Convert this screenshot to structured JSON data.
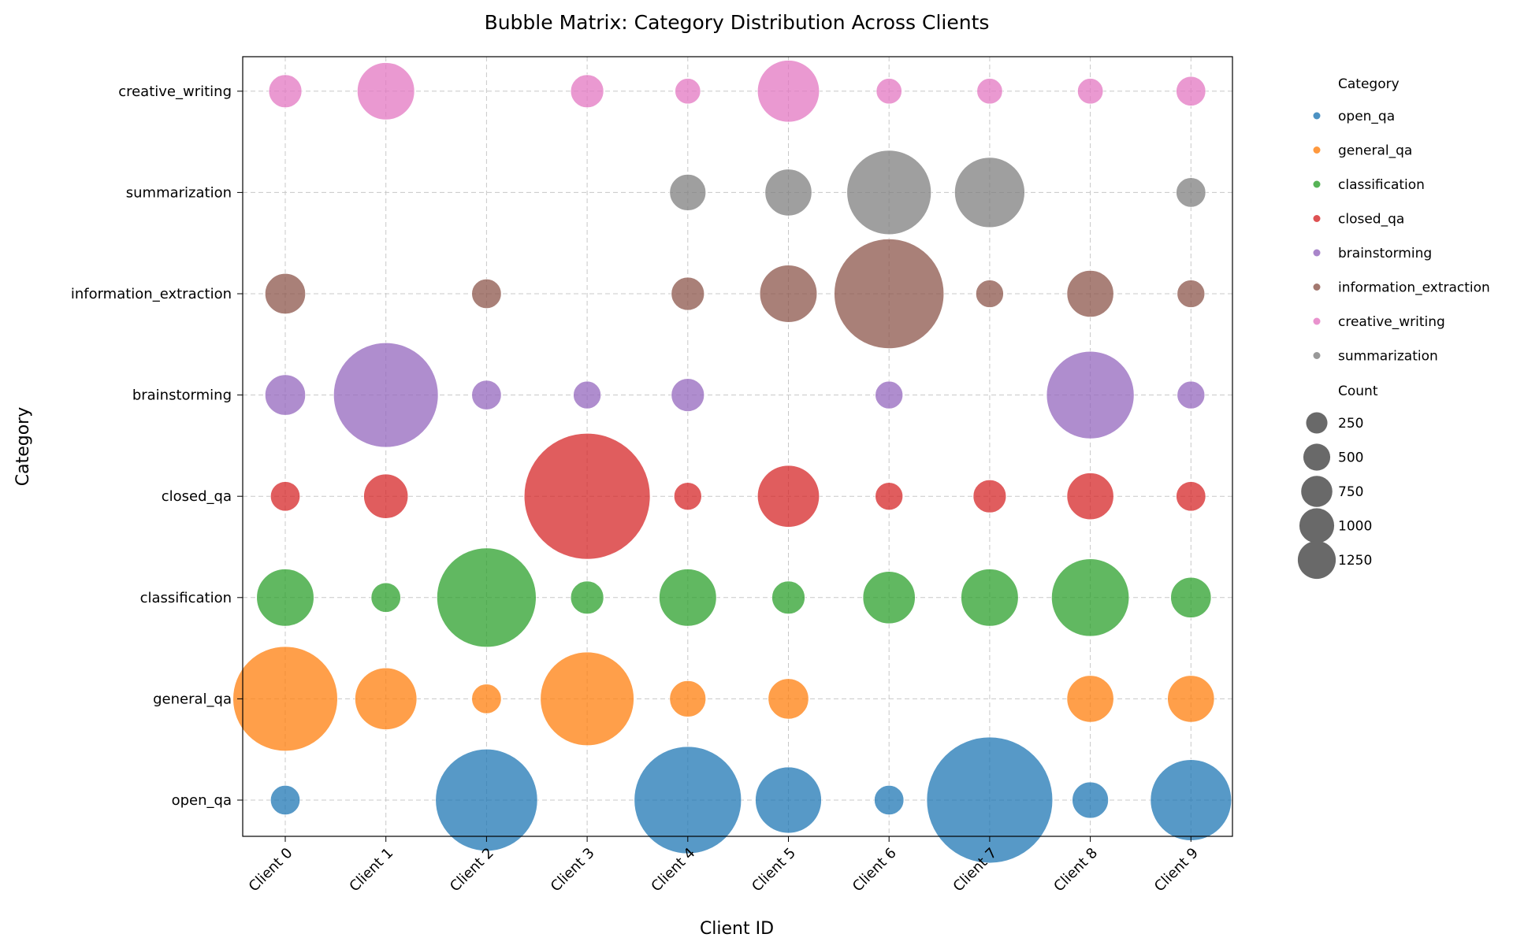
{
  "chart_data": {
    "type": "scatter",
    "subtype": "bubble-matrix",
    "title": "Bubble Matrix: Category Distribution Across Clients",
    "xlabel": "Client ID",
    "ylabel": "Category",
    "grid": true,
    "legend_placement": "right-outside",
    "x_categories": [
      "Client 0",
      "Client 1",
      "Client 2",
      "Client 3",
      "Client 4",
      "Client 5",
      "Client 6",
      "Client 7",
      "Client 8",
      "Client 9"
    ],
    "y_categories": [
      "open_qa",
      "general_qa",
      "classification",
      "closed_qa",
      "brainstorming",
      "information_extraction",
      "creative_writing",
      "summarization"
    ],
    "y_axis_order": [
      "open_qa",
      "general_qa",
      "classification",
      "closed_qa",
      "brainstorming",
      "information_extraction",
      "summarization",
      "creative_writing"
    ],
    "series": [
      {
        "name": "open_qa",
        "color": "#1f77b4",
        "values": [
          80,
          null,
          950,
          null,
          1050,
          400,
          80,
          1450,
          120,
          600
        ]
      },
      {
        "name": "general_qa",
        "color": "#ff7f0e",
        "values": [
          1000,
          350,
          80,
          800,
          120,
          150,
          null,
          null,
          200,
          200
        ]
      },
      {
        "name": "classification",
        "color": "#2ca02c",
        "values": [
          300,
          80,
          900,
          100,
          300,
          100,
          250,
          300,
          550,
          150
        ]
      },
      {
        "name": "closed_qa",
        "color": "#d62728",
        "values": [
          80,
          180,
          null,
          1450,
          70,
          350,
          70,
          100,
          200,
          80
        ]
      },
      {
        "name": "brainstorming",
        "color": "#9467bd",
        "values": [
          150,
          1000,
          80,
          70,
          100,
          null,
          70,
          null,
          700,
          70
        ]
      },
      {
        "name": "information_extraction",
        "color": "#8c564b",
        "values": [
          150,
          null,
          80,
          null,
          100,
          300,
          1100,
          70,
          200,
          70
        ]
      },
      {
        "name": "creative_writing",
        "color": "#e377c2",
        "values": [
          100,
          300,
          null,
          100,
          60,
          350,
          60,
          60,
          60,
          80
        ]
      },
      {
        "name": "summarization",
        "color": "#7f7f7f",
        "values": [
          null,
          null,
          null,
          null,
          120,
          200,
          650,
          450,
          null,
          80
        ]
      }
    ],
    "size_legend": {
      "title": "Count",
      "values": [
        250,
        500,
        750,
        1000,
        1250
      ],
      "labels": [
        "250",
        "500",
        "750",
        "1000",
        "1250"
      ],
      "color": "#696969"
    },
    "color_legend_title": "Category"
  }
}
